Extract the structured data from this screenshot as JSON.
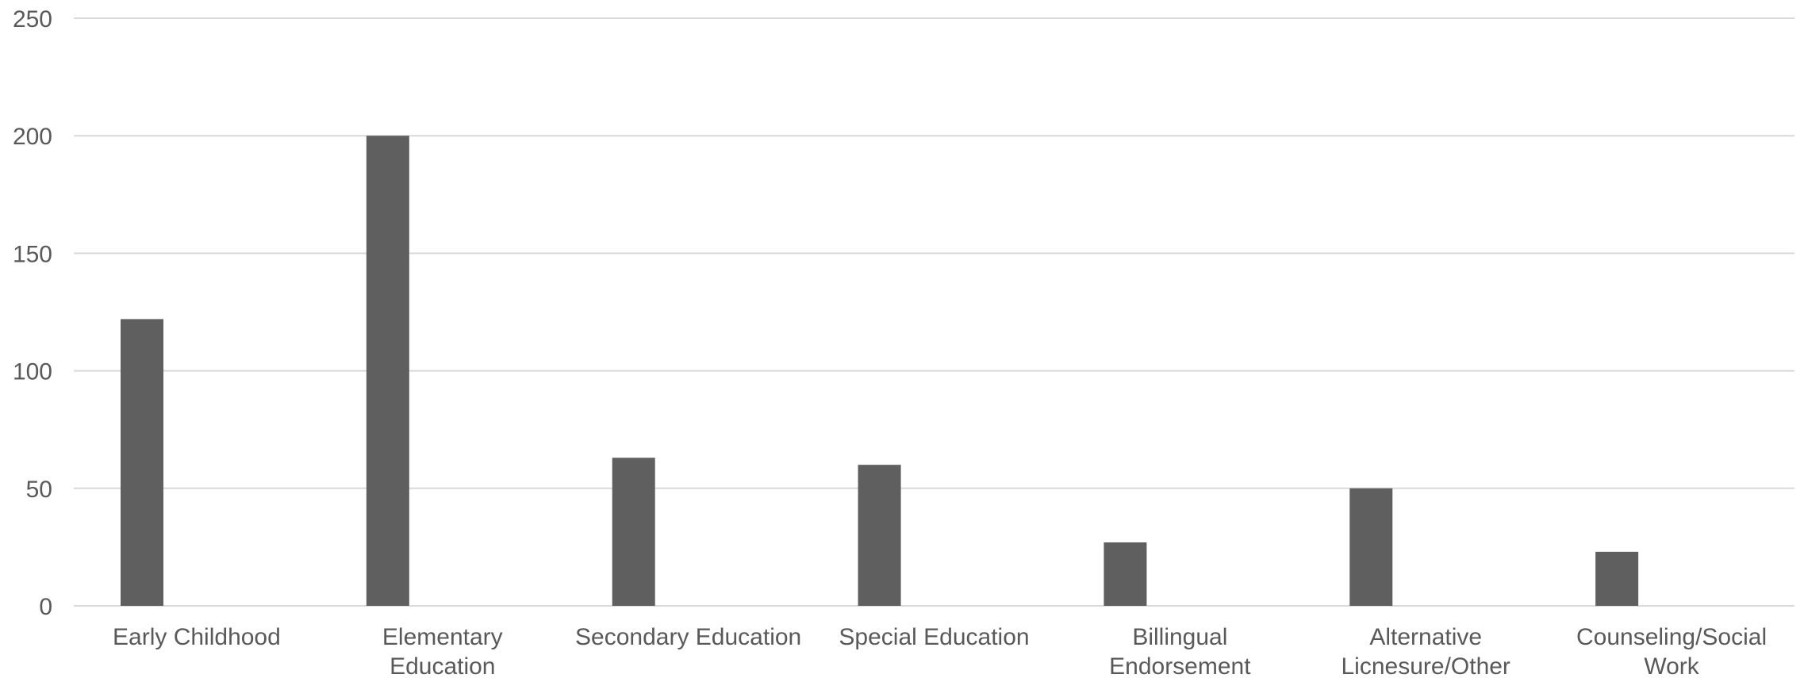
{
  "chart_data": {
    "type": "bar",
    "categories": [
      [
        "Early Childhood"
      ],
      [
        "Elementary",
        "Education"
      ],
      [
        "Secondary Education"
      ],
      [
        "Special Education"
      ],
      [
        "Billingual",
        "Endorsement"
      ],
      [
        "Alternative",
        "Licnesure/Other"
      ],
      [
        "Counseling/Social",
        "Work"
      ]
    ],
    "values": [
      122,
      200,
      63,
      60,
      27,
      50,
      23
    ],
    "ylim": [
      0,
      250
    ],
    "yticks": [
      0,
      50,
      100,
      150,
      200,
      250
    ],
    "grid": true,
    "title": "",
    "xlabel": "",
    "ylabel": "",
    "colors": {
      "bar": "#5f5f5f",
      "grid": "#d9d9d9",
      "text": "#595959"
    }
  }
}
